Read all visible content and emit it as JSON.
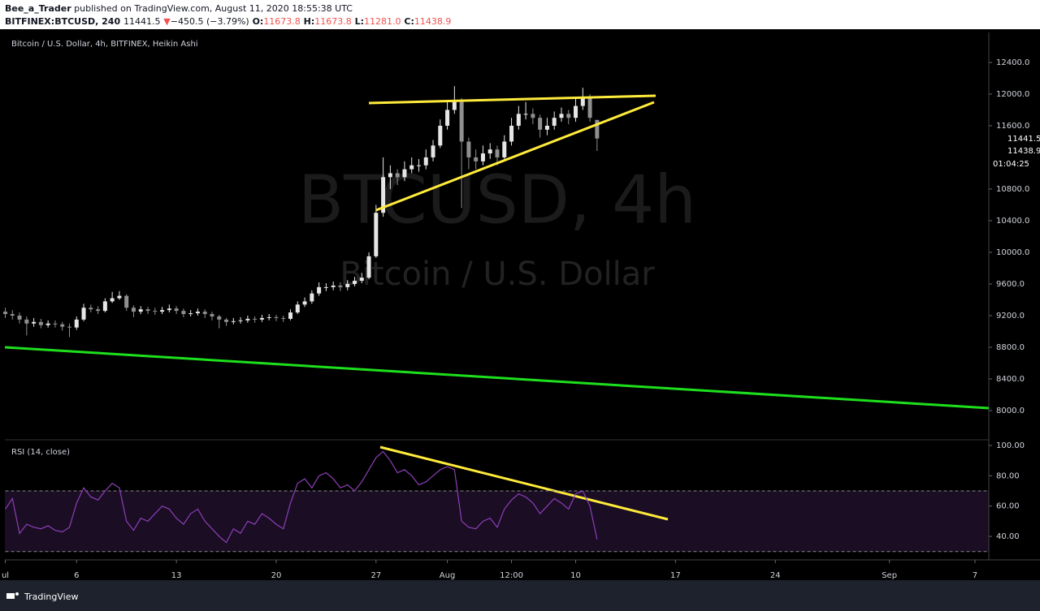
{
  "header": {
    "author": "Bee_a_Trader",
    "published": "published on TradingView.com, August 11, 2020 18:55:38 UTC",
    "symbol": "BITFINEX:BTCUSD, 240",
    "last": "11441.5",
    "arrow": "▼",
    "change": "−450.5 (−3.79%)",
    "o_label": "O:",
    "o": "11673.8",
    "h_label": "H:",
    "h": "11673.8",
    "l_label": "L:",
    "l": "11281.0",
    "c_label": "C:",
    "c": "11438.9"
  },
  "chart_data": [
    {
      "type": "candlestick",
      "title": "Bitcoin / U.S. Dollar, 4h, BITFINEX, Heikin Ashi",
      "watermark": [
        "BTCUSD, 4h",
        "Bitcoin / U.S. Dollar"
      ],
      "x": [
        0,
        0.5,
        1,
        1.5,
        2,
        2.5,
        3,
        3.5,
        4,
        4.5,
        5,
        5.5,
        6,
        6.5,
        7,
        7.5,
        8,
        8.5,
        9,
        9.5,
        10,
        10.5,
        11,
        11.5,
        12,
        12.5,
        13,
        13.5,
        14,
        14.5,
        15,
        15.5,
        16,
        16.5,
        17,
        17.5,
        18,
        18.5,
        19,
        19.5,
        20,
        20.5,
        21,
        21.5,
        22,
        22.5,
        23,
        23.5,
        24,
        24.5,
        25,
        25.5,
        26,
        26.5,
        27,
        27.5,
        28,
        28.5,
        29,
        29.5,
        30,
        30.5,
        31,
        31.5,
        32,
        32.5,
        33,
        33.5,
        34,
        34.5,
        35,
        35.5,
        36,
        36.5,
        37,
        37.5,
        38,
        38.5,
        39,
        39.5,
        40,
        40.5,
        41,
        41.5
      ],
      "open": [
        9250,
        9220,
        9200,
        9150,
        9100,
        9120,
        9080,
        9100,
        9090,
        9060,
        9050,
        9150,
        9300,
        9280,
        9260,
        9380,
        9420,
        9450,
        9300,
        9250,
        9280,
        9260,
        9250,
        9270,
        9290,
        9260,
        9220,
        9230,
        9250,
        9220,
        9190,
        9150,
        9120,
        9130,
        9140,
        9160,
        9150,
        9170,
        9180,
        9170,
        9160,
        9240,
        9340,
        9380,
        9480,
        9560,
        9560,
        9580,
        9560,
        9600,
        9640,
        9680,
        9950,
        10500,
        10950,
        11000,
        10950,
        11050,
        11100,
        11100,
        11200,
        11350,
        11600,
        11800,
        11900,
        11400,
        11200,
        11150,
        11250,
        11300,
        11200,
        11400,
        11600,
        11750,
        11750,
        11700,
        11550,
        11600,
        11700,
        11750,
        11700,
        11850,
        11950,
        11673.8
      ],
      "high": [
        9300,
        9270,
        9240,
        9190,
        9170,
        9160,
        9140,
        9140,
        9120,
        9100,
        9190,
        9350,
        9340,
        9320,
        9420,
        9500,
        9510,
        9470,
        9330,
        9320,
        9310,
        9300,
        9310,
        9340,
        9320,
        9290,
        9270,
        9290,
        9280,
        9250,
        9210,
        9170,
        9170,
        9180,
        9200,
        9190,
        9210,
        9220,
        9210,
        9200,
        9280,
        9380,
        9430,
        9520,
        9620,
        9610,
        9630,
        9620,
        9650,
        9690,
        9740,
        10000,
        10600,
        11200,
        11100,
        11050,
        11150,
        11200,
        11180,
        11300,
        11420,
        11680,
        11900,
        12100,
        11950,
        11450,
        11300,
        11350,
        11380,
        11350,
        11480,
        11700,
        11850,
        11900,
        11820,
        11740,
        11700,
        11780,
        11830,
        11800,
        11950,
        12080,
        12000,
        11673.8
      ],
      "low": [
        9170,
        9150,
        9100,
        8950,
        9060,
        9040,
        9050,
        9050,
        9010,
        8930,
        9020,
        9130,
        9240,
        9220,
        9240,
        9360,
        9400,
        9260,
        9180,
        9220,
        9220,
        9210,
        9220,
        9240,
        9220,
        9180,
        9190,
        9200,
        9170,
        9140,
        9040,
        9070,
        9090,
        9100,
        9110,
        9110,
        9120,
        9140,
        9130,
        9120,
        9140,
        9220,
        9310,
        9350,
        9450,
        9510,
        9520,
        9510,
        9520,
        9570,
        9610,
        9660,
        9930,
        10450,
        10800,
        10850,
        10900,
        11000,
        11020,
        11050,
        11150,
        11320,
        11550,
        11750,
        10560,
        11050,
        11050,
        11100,
        11180,
        11100,
        11150,
        11350,
        11550,
        11680,
        11620,
        11450,
        11480,
        11550,
        11650,
        11620,
        11650,
        11800,
        11650,
        11281
      ],
      "close": [
        9220,
        9200,
        9150,
        9100,
        9120,
        9080,
        9100,
        9090,
        9060,
        9050,
        9150,
        9300,
        9280,
        9260,
        9380,
        9420,
        9450,
        9300,
        9250,
        9280,
        9260,
        9250,
        9270,
        9290,
        9260,
        9220,
        9230,
        9250,
        9220,
        9190,
        9150,
        9120,
        9130,
        9140,
        9160,
        9150,
        9170,
        9180,
        9170,
        9160,
        9240,
        9340,
        9380,
        9480,
        9560,
        9560,
        9580,
        9560,
        9600,
        9640,
        9680,
        9950,
        10500,
        10950,
        11000,
        10950,
        11050,
        11100,
        11100,
        11200,
        11350,
        11600,
        11800,
        11900,
        11400,
        11200,
        11150,
        11250,
        11300,
        11200,
        11400,
        11600,
        11750,
        11750,
        11700,
        11550,
        11600,
        11700,
        11750,
        11700,
        11850,
        11950,
        11700,
        11438.9
      ],
      "up_color": "#e6e6e6",
      "down_color": "#8f8f8f",
      "xlim": [
        0,
        69
      ],
      "ylim": [
        7641,
        12779
      ],
      "yticks": [
        {
          "value": 8000,
          "label": "8000.0"
        },
        {
          "value": 8400,
          "label": "8400.0"
        },
        {
          "value": 8800,
          "label": "8800.0"
        },
        {
          "value": 9200,
          "label": "9200.0"
        },
        {
          "value": 9600,
          "label": "9600.0"
        },
        {
          "value": 10000,
          "label": "10000.0"
        },
        {
          "value": 10400,
          "label": "10400.0"
        },
        {
          "value": 10800,
          "label": "10800.0"
        },
        {
          "value": 11600,
          "label": "11600.0"
        },
        {
          "value": 12000,
          "label": "12000.0"
        },
        {
          "value": 12400,
          "label": "12400.0"
        }
      ],
      "price_tags": [
        "11441.5",
        "11438.9",
        "01:04:25"
      ]
    },
    {
      "type": "line",
      "title": "RSI (14, close)",
      "color": "#8e3fb8",
      "values": [
        58,
        65,
        42,
        48,
        46,
        45,
        47,
        44,
        43,
        46,
        62,
        72,
        66,
        64,
        70,
        75,
        72,
        50,
        44,
        52,
        50,
        55,
        60,
        58,
        52,
        48,
        55,
        58,
        50,
        45,
        40,
        36,
        45,
        42,
        50,
        48,
        55,
        52,
        48,
        45,
        62,
        75,
        78,
        72,
        80,
        82,
        78,
        72,
        74,
        70,
        76,
        84,
        92,
        96,
        90,
        82,
        84,
        80,
        74,
        76,
        80,
        84,
        86,
        84,
        50,
        46,
        45,
        50,
        52,
        46,
        58,
        64,
        68,
        66,
        62,
        55,
        60,
        65,
        62,
        58,
        68,
        70,
        60,
        38
      ],
      "bands": [
        30,
        70
      ],
      "ylim": [
        24.5,
        103.2
      ],
      "yticks": [
        {
          "value": 40,
          "label": "40.00"
        },
        {
          "value": 60,
          "label": "60.00"
        },
        {
          "value": 80,
          "label": "80.00"
        },
        {
          "value": 100,
          "label": "100.00"
        }
      ],
      "xticks": [
        {
          "value": 0,
          "label": "ul"
        },
        {
          "value": 5,
          "label": "6"
        },
        {
          "value": 12,
          "label": "13"
        },
        {
          "value": 19,
          "label": "20"
        },
        {
          "value": 26,
          "label": "27"
        },
        {
          "value": 31,
          "label": "Aug"
        },
        {
          "value": 35.5,
          "label": "12:00"
        },
        {
          "value": 40,
          "label": "10"
        },
        {
          "value": 47,
          "label": "17"
        },
        {
          "value": 54,
          "label": "24"
        },
        {
          "value": 62,
          "label": "Sep"
        },
        {
          "value": 68,
          "label": "7"
        }
      ]
    }
  ],
  "footer": {
    "brand": "TradingView"
  }
}
